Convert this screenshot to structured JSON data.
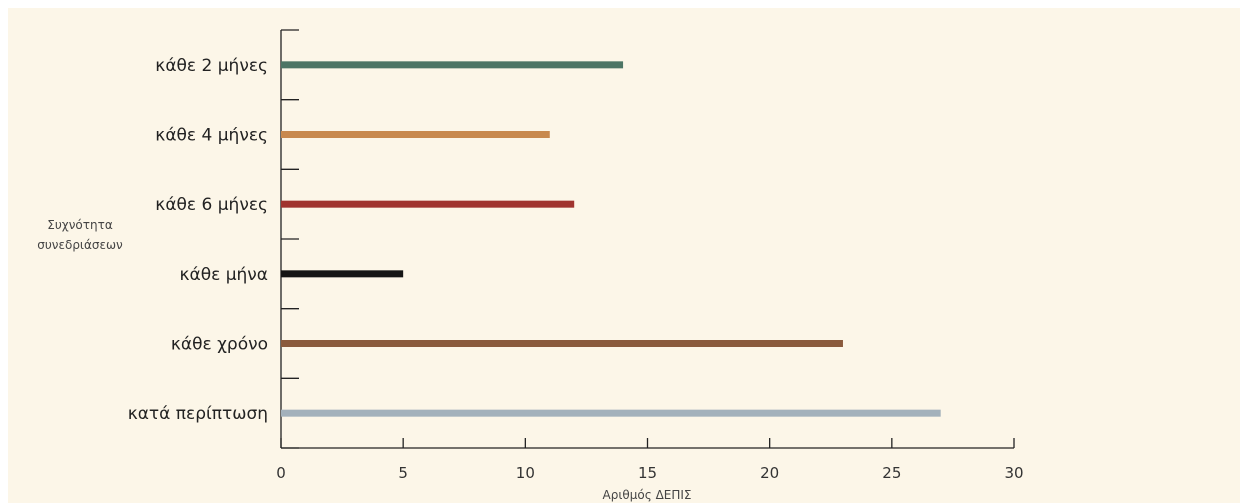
{
  "chart_data": {
    "type": "bar",
    "orientation": "horizontal",
    "categories": [
      "κάθε 2 μήνες",
      "κάθε 4 μήνες",
      "κάθε 6 μήνες",
      "κάθε μήνα",
      "κάθε χρόνο",
      "κατά περίπτωση"
    ],
    "values": [
      14,
      11,
      12,
      5,
      23,
      27
    ],
    "colors": [
      "#4d7565",
      "#c8894e",
      "#a0342f",
      "#151515",
      "#8a5a3c",
      "#a3b1bb"
    ],
    "ylabel_lines": [
      "Συχνότητα",
      "συνεδριάσεων"
    ],
    "xlabel": "Αριθμός ΔΕΠΙΣ",
    "xlim": [
      0,
      30
    ],
    "xticks": [
      "0",
      "5",
      "10",
      "15",
      "20",
      "25",
      "30"
    ],
    "grid": false,
    "legend": "none"
  }
}
